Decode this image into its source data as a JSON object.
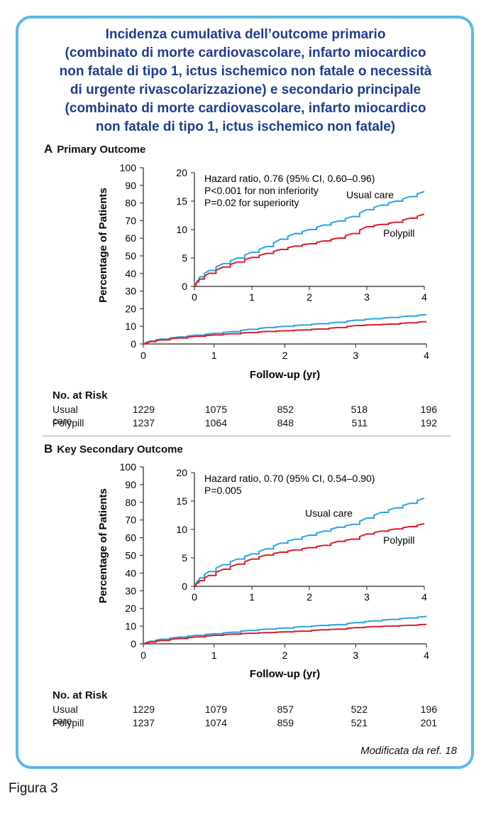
{
  "title_lines": [
    "Incidenza cumulativa dell’outcome primario",
    "(combinato di morte cardiovascolare, infarto miocardico",
    "non fatale di tipo 1, ictus ischemico non fatale o necessità",
    "di urgente rivascolarizzazione) e secondario principale",
    "(combinato di morte cardiovascolare, infarto miocardico",
    "non fatale di tipo 1, ictus ischemico non fatale)"
  ],
  "source_note": "Modificata da ref. 18",
  "figure_caption": "Figura 3",
  "colors": {
    "usual_care": "#2aa4de",
    "polypill": "#d7212b",
    "frame": "#5bb7e6",
    "title": "#1f3d8f"
  },
  "chart_data": [
    {
      "type": "line",
      "letter": "A",
      "title": "Primary Outcome",
      "xlabel": "Follow-up (yr)",
      "ylabel": "Percentage of Patients",
      "xlim": [
        0,
        4
      ],
      "ylim": [
        0,
        100
      ],
      "xticks": [
        0,
        1,
        2,
        3,
        4
      ],
      "yticks": [
        0,
        10,
        20,
        30,
        40,
        50,
        60,
        70,
        80,
        90,
        100
      ],
      "series": [
        {
          "name": "Usual care",
          "color": "#2aa4de",
          "x": [
            0,
            0.05,
            0.1,
            0.25,
            0.5,
            0.75,
            1.0,
            1.25,
            1.5,
            1.75,
            2.0,
            2.25,
            2.5,
            2.75,
            3.0,
            3.25,
            3.5,
            3.75,
            4.0
          ],
          "y": [
            0,
            1.0,
            1.7,
            2.8,
            4.0,
            5.0,
            6.0,
            7.0,
            8.3,
            9.3,
            10.0,
            10.8,
            11.5,
            12.3,
            13.5,
            14.3,
            15.0,
            15.8,
            16.7
          ]
        },
        {
          "name": "Polypill",
          "color": "#d7212b",
          "x": [
            0,
            0.05,
            0.1,
            0.25,
            0.5,
            0.75,
            1.0,
            1.25,
            1.5,
            1.75,
            2.0,
            2.25,
            2.5,
            2.75,
            3.0,
            3.25,
            3.5,
            3.75,
            4.0
          ],
          "y": [
            0,
            0.8,
            1.3,
            2.3,
            3.4,
            4.3,
            5.1,
            5.8,
            6.5,
            7.1,
            7.5,
            8.0,
            8.5,
            9.3,
            10.5,
            10.9,
            11.3,
            12.0,
            12.7
          ]
        }
      ],
      "inset": {
        "xlim": [
          0,
          4
        ],
        "ylim": [
          0,
          20
        ],
        "xticks": [
          0,
          1,
          2,
          3,
          4
        ],
        "yticks": [
          0,
          5,
          10,
          15,
          20
        ],
        "annotations": [
          "Hazard ratio, 0.76 (95% CI, 0.60–0.96)",
          "P<0.001 for non inferiority",
          "P=0.02 for superiority"
        ],
        "label_usual": "Usual care",
        "label_polypill": "Polypill"
      },
      "risk_table": {
        "title": "No. at Risk",
        "rows": [
          {
            "label": "Usual care",
            "values": [
              "1229",
              "1075",
              "852",
              "518",
              "196"
            ]
          },
          {
            "label": "Polypill",
            "values": [
              "1237",
              "1064",
              "848",
              "511",
              "192"
            ]
          }
        ]
      }
    },
    {
      "type": "line",
      "letter": "B",
      "title": "Key Secondary Outcome",
      "xlabel": "Follow-up (yr)",
      "ylabel": "Percentage of Patients",
      "xlim": [
        0,
        4
      ],
      "ylim": [
        0,
        100
      ],
      "xticks": [
        0,
        1,
        2,
        3,
        4
      ],
      "yticks": [
        0,
        10,
        20,
        30,
        40,
        50,
        60,
        70,
        80,
        90,
        100
      ],
      "series": [
        {
          "name": "Usual care",
          "color": "#2aa4de",
          "x": [
            0,
            0.05,
            0.1,
            0.25,
            0.5,
            0.75,
            1.0,
            1.25,
            1.5,
            1.75,
            2.0,
            2.25,
            2.5,
            2.75,
            3.0,
            3.25,
            3.5,
            3.75,
            4.0
          ],
          "y": [
            0,
            0.9,
            1.5,
            2.6,
            3.8,
            4.8,
            5.7,
            6.6,
            7.6,
            8.3,
            9.0,
            9.7,
            10.4,
            10.9,
            12.0,
            13.0,
            13.8,
            14.6,
            15.5
          ]
        },
        {
          "name": "Polypill",
          "color": "#d7212b",
          "x": [
            0,
            0.05,
            0.1,
            0.25,
            0.5,
            0.75,
            1.0,
            1.25,
            1.5,
            1.75,
            2.0,
            2.25,
            2.5,
            2.75,
            3.0,
            3.25,
            3.5,
            3.75,
            4.0
          ],
          "y": [
            0,
            0.6,
            1.0,
            1.9,
            3.0,
            3.9,
            4.8,
            5.5,
            6.0,
            6.4,
            6.8,
            7.2,
            7.9,
            8.3,
            9.2,
            9.7,
            10.1,
            10.5,
            11.0
          ]
        }
      ],
      "inset": {
        "xlim": [
          0,
          4
        ],
        "ylim": [
          0,
          20
        ],
        "xticks": [
          0,
          1,
          2,
          3,
          4
        ],
        "yticks": [
          0,
          5,
          10,
          15,
          20
        ],
        "annotations": [
          "Hazard ratio, 0.70 (95% CI, 0.54–0.90)",
          "P=0.005"
        ],
        "label_usual": "Usual care",
        "label_polypill": "Polypill"
      },
      "risk_table": {
        "title": "No. at Risk",
        "rows": [
          {
            "label": "Usual care",
            "values": [
              "1229",
              "1079",
              "857",
              "522",
              "196"
            ]
          },
          {
            "label": "Polypill",
            "values": [
              "1237",
              "1074",
              "859",
              "521",
              "201"
            ]
          }
        ]
      }
    }
  ]
}
